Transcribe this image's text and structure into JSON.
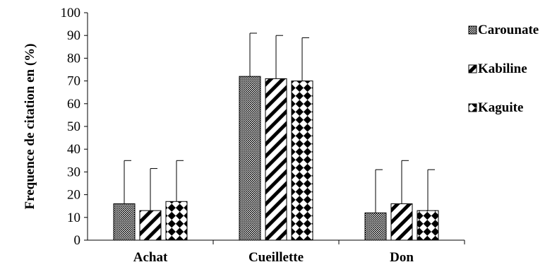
{
  "chart_data": {
    "type": "bar",
    "title": "",
    "xlabel": "",
    "ylabel": "Frequence de citation en (%)",
    "ylim": [
      0,
      100
    ],
    "yticks": [
      0,
      10,
      20,
      30,
      40,
      50,
      60,
      70,
      80,
      90,
      100
    ],
    "categories": [
      "Achat",
      "Cueillette",
      "Don"
    ],
    "series": [
      {
        "name": "Carounate",
        "values": [
          16,
          72,
          12
        ],
        "errors": [
          19,
          19,
          19
        ],
        "pattern": "dots"
      },
      {
        "name": "Kabiline",
        "values": [
          13,
          71,
          16
        ],
        "errors": [
          18.5,
          19,
          19
        ],
        "pattern": "diagonal"
      },
      {
        "name": "Kaguite",
        "values": [
          17,
          70,
          13
        ],
        "errors": [
          18,
          19,
          18
        ],
        "pattern": "checker"
      }
    ],
    "grid": false,
    "legend_position": "right"
  }
}
